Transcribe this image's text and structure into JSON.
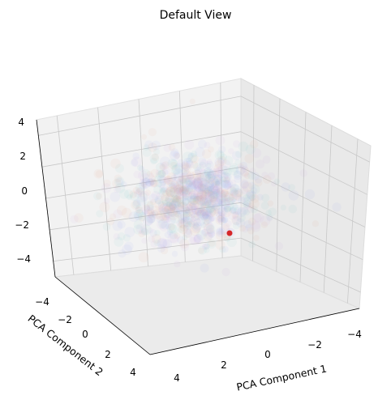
{
  "chart_data": {
    "type": "scatter",
    "title": "Default View",
    "xlabel": "PCA Component 1",
    "ylabel": "PCA Component 2",
    "zlabel": "",
    "view": {
      "elev": 20,
      "azim": 60
    },
    "xlim": [
      -5,
      5
    ],
    "ylim": [
      -5,
      5
    ],
    "zlim": [
      -5,
      5
    ],
    "x_ticks": [
      4,
      2,
      0,
      -2,
      -4
    ],
    "y_ticks": [
      -4,
      -2,
      0,
      2,
      4
    ],
    "z_ticks": [
      4,
      2,
      0,
      -2,
      -4
    ],
    "grid": true,
    "series": [
      {
        "color": "#9aa0f0",
        "alpha": 0.08,
        "note_points": "dense cloud of faint points centred near the origin"
      },
      {
        "color": "#7fd0c8",
        "alpha": 0.08
      },
      {
        "color": "#e8a58a",
        "alpha": 0.08
      },
      {
        "color": "#c8a0e0",
        "alpha": 0.08
      }
    ],
    "highlight": {
      "x": -0.8,
      "y": 0.9,
      "z": -2.6,
      "color": "#d62728"
    }
  }
}
